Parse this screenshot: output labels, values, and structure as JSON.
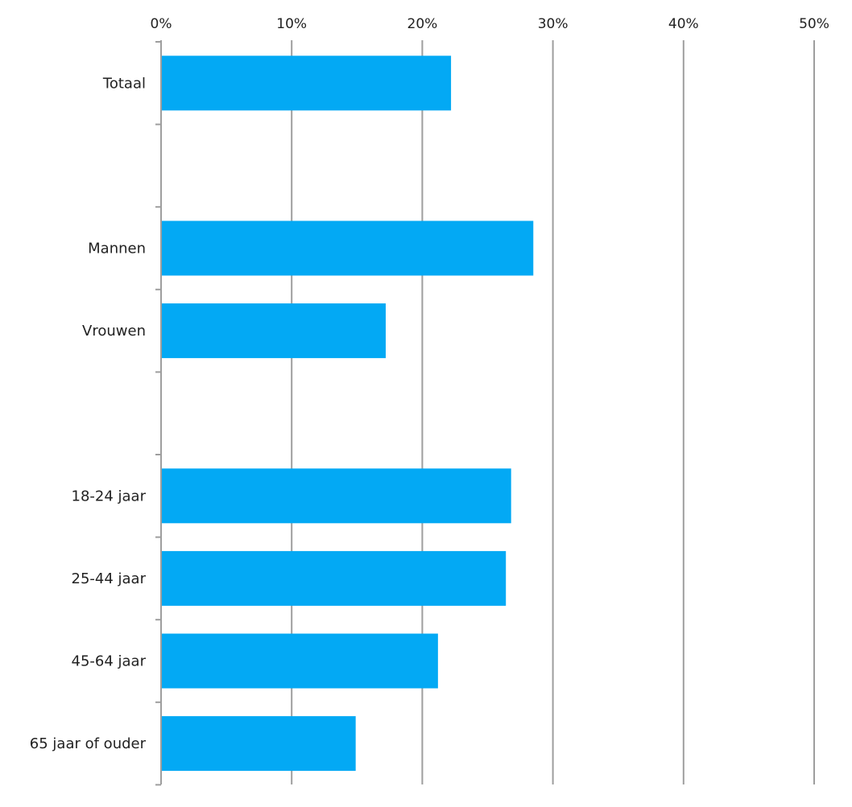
{
  "chart_data": {
    "type": "bar",
    "orientation": "horizontal",
    "x_ticks": [
      "0%",
      "10%",
      "20%",
      "30%",
      "40%",
      "50%"
    ],
    "xlim": [
      0,
      50
    ],
    "x_axis_position": "top",
    "grid": true,
    "bar_color": "#03a9f4",
    "categories": [
      "Totaal",
      "",
      "Mannen",
      "Vrouwen",
      "",
      "18-24 jaar",
      "25-44 jaar",
      "45-64 jaar",
      "65 jaar of ouder"
    ],
    "values": [
      22.2,
      null,
      28.5,
      17.2,
      null,
      26.8,
      26.4,
      21.2,
      14.9
    ]
  }
}
